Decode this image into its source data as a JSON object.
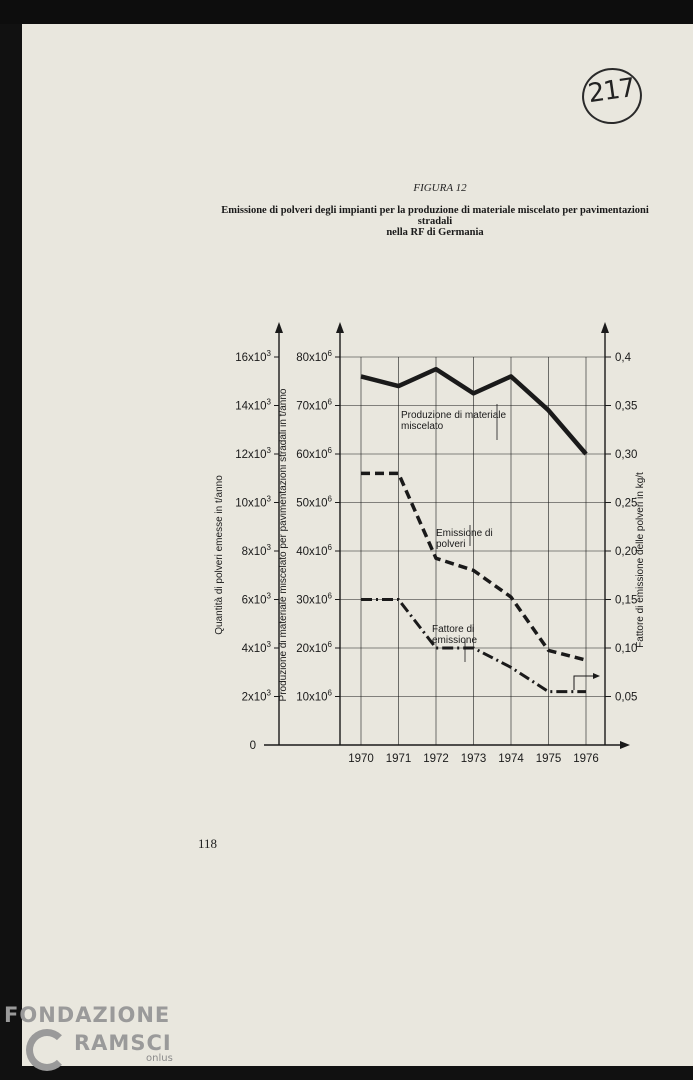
{
  "stamp": {
    "text": "217"
  },
  "figure": {
    "label": "FIGURA 12",
    "title_line1": "Emissione di polveri degli impianti per la produzione di materiale miscelato per pavimentazioni stradali",
    "title_line2": "nella RF di Germania"
  },
  "page_number": "118",
  "watermark": {
    "line1": "FONDAZIONE",
    "line2": "RAMSCI",
    "suffix": "onlus"
  },
  "colors": {
    "ink": "#1a1a1a",
    "paper": "#e9e7de"
  },
  "chart_data": {
    "type": "line",
    "categories": [
      "1970",
      "1971",
      "1972",
      "1973",
      "1974",
      "1975",
      "1976"
    ],
    "zero_label": "0",
    "axes": {
      "left_outer": {
        "label": "Quantità di polveri emesse in t/anno",
        "ticks": [
          {
            "label": "2x10",
            "exp": "3"
          },
          {
            "label": "4x10",
            "exp": "3"
          },
          {
            "label": "6x10",
            "exp": "3"
          },
          {
            "label": "8x10",
            "exp": "3"
          },
          {
            "label": "10x10",
            "exp": "3"
          },
          {
            "label": "12x10",
            "exp": "3"
          },
          {
            "label": "14x10",
            "exp": "3"
          },
          {
            "label": "16x10",
            "exp": "3"
          }
        ],
        "range": [
          0,
          16000
        ]
      },
      "left_inner": {
        "label": "Produzione di materiale miscelato per pavimentazioni stradali in t/anno",
        "ticks": [
          {
            "label": "10x10",
            "exp": "6"
          },
          {
            "label": "20x10",
            "exp": "6"
          },
          {
            "label": "30x10",
            "exp": "6"
          },
          {
            "label": "40x10",
            "exp": "6"
          },
          {
            "label": "50x10",
            "exp": "6"
          },
          {
            "label": "60x10",
            "exp": "6"
          },
          {
            "label": "70x10",
            "exp": "6"
          },
          {
            "label": "80x10",
            "exp": "6"
          }
        ],
        "range": [
          0,
          80000000
        ]
      },
      "right": {
        "label": "Fattore di emissione delle polveri in kg/t",
        "ticks": [
          "0,05",
          "0,10",
          "0,15",
          "0,20",
          "0,25",
          "0,30",
          "0,35",
          "0,4"
        ],
        "range": [
          0,
          0.4
        ]
      }
    },
    "series": [
      {
        "name": "Produzione di materiale miscelato",
        "style": "solid",
        "axis": "left_inner",
        "x": [
          1970,
          1971,
          1972,
          1973,
          1974,
          1975,
          1976
        ],
        "values": [
          76000000,
          74000000,
          77500000,
          72500000,
          76000000,
          69000000,
          60000000
        ]
      },
      {
        "name": "Emissione di polveri",
        "style": "dashed",
        "axis": "left_outer",
        "x": [
          1970,
          1971,
          1972,
          1973,
          1974,
          1975,
          1976
        ],
        "values": [
          11200,
          11200,
          7700,
          7200,
          6100,
          3900,
          3500
        ]
      },
      {
        "name": "Fattore di emissione",
        "style": "dash-dot",
        "axis": "right",
        "x": [
          1970,
          1971,
          1972,
          1973,
          1974,
          1975,
          1976
        ],
        "values": [
          0.15,
          0.15,
          0.1,
          0.1,
          0.08,
          0.055,
          0.055
        ]
      }
    ],
    "series_labels": [
      [
        "Produzione di materiale",
        "miscelato"
      ],
      [
        "Emissione di",
        "polveri"
      ],
      [
        "Fattore di",
        "emissione"
      ]
    ]
  }
}
